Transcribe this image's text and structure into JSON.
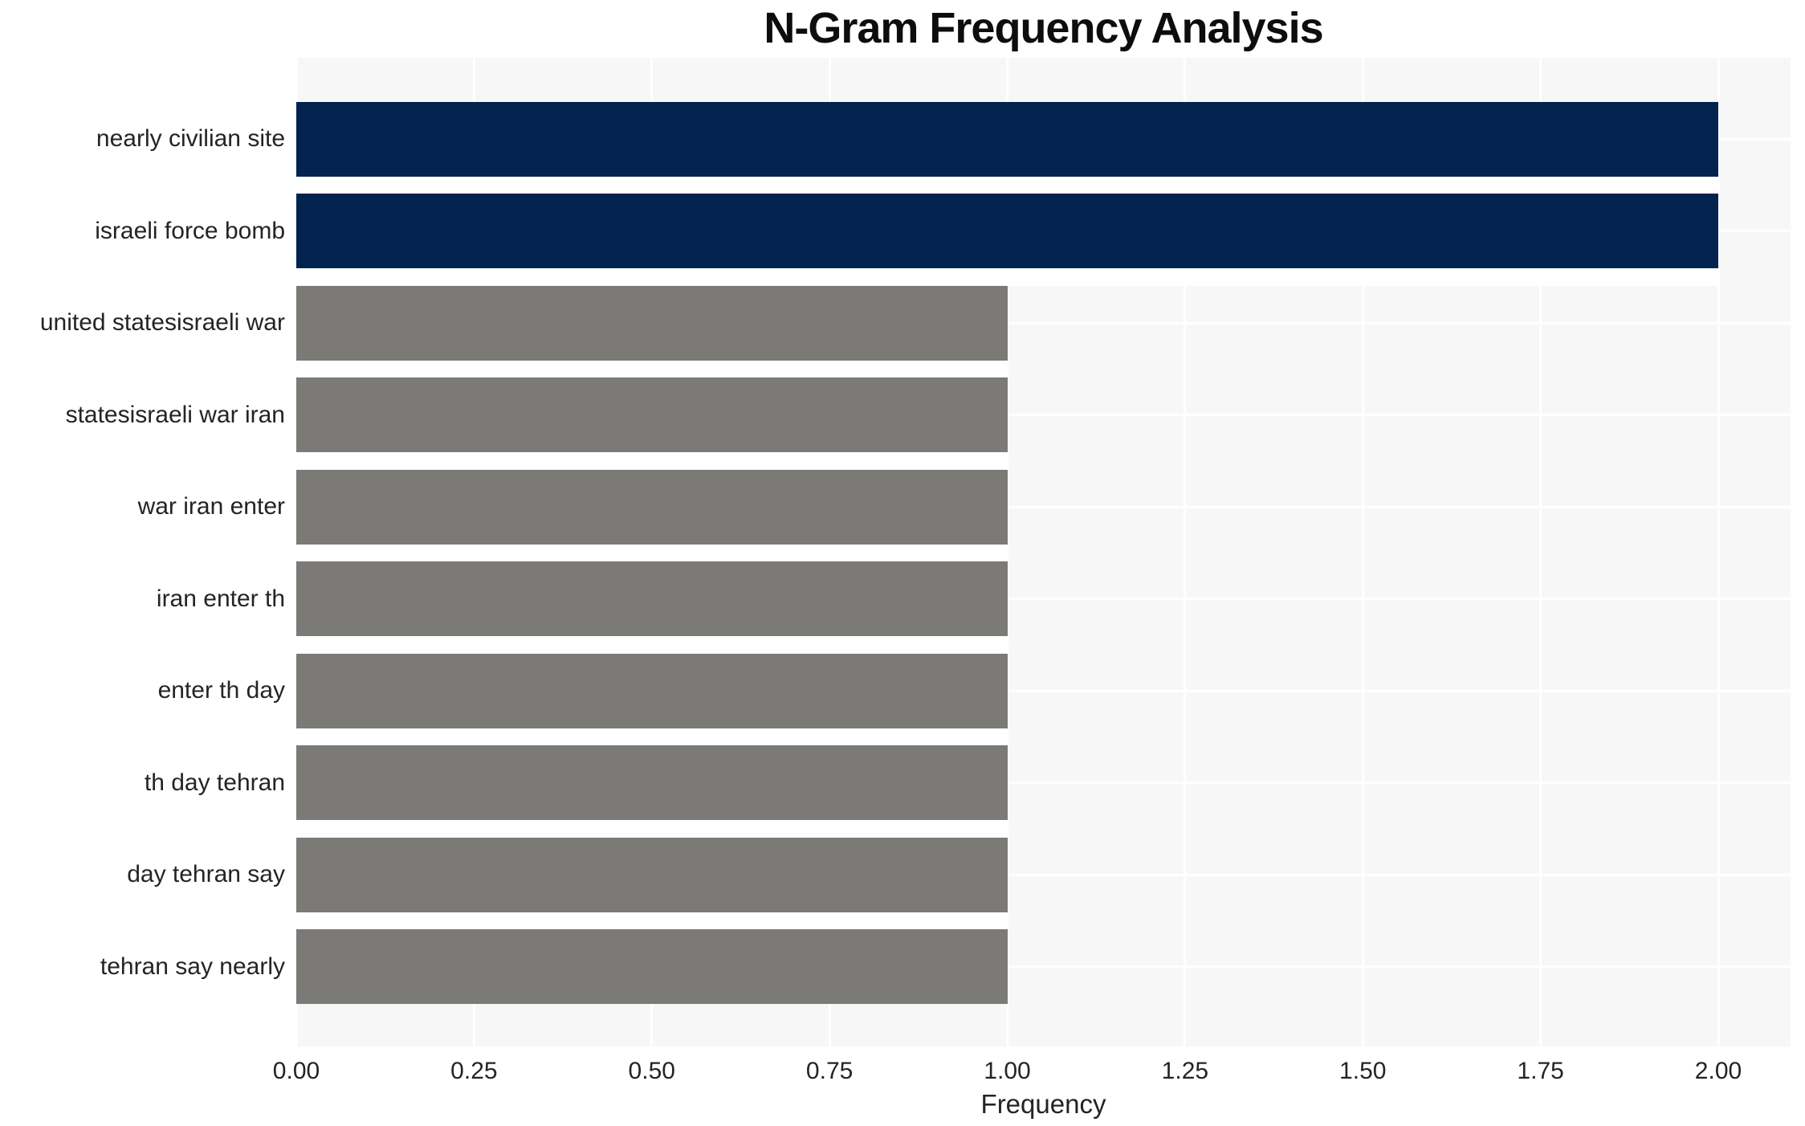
{
  "chart_data": {
    "type": "bar",
    "orientation": "horizontal",
    "title": "N-Gram Frequency Analysis",
    "xlabel": "Frequency",
    "ylabel": "",
    "categories": [
      "nearly civilian site",
      "israeli force bomb",
      "united statesisraeli war",
      "statesisraeli war iran",
      "war iran enter",
      "iran enter th",
      "enter th day",
      "th day tehran",
      "day tehran say",
      "tehran say nearly"
    ],
    "values": [
      2,
      2,
      1,
      1,
      1,
      1,
      1,
      1,
      1,
      1
    ],
    "bar_colors": [
      "#02234e",
      "#02234e",
      "#7b7a77",
      "#7b7a77",
      "#7b7a77",
      "#7b7a77",
      "#7b7a77",
      "#7b7a77",
      "#7b7a77",
      "#7b7a77"
    ],
    "xlim": [
      0,
      2.1
    ],
    "xticks": [
      0,
      0.25,
      0.5,
      0.75,
      1,
      1.25,
      1.5,
      1.75,
      2
    ],
    "xtick_labels": [
      "0.00",
      "0.25",
      "0.50",
      "0.75",
      "1.00",
      "1.25",
      "1.50",
      "1.75",
      "2.00"
    ],
    "grid": true,
    "legend": false,
    "colors": {
      "highlight_bar": "#02234e",
      "default_bar": "#7b7a77",
      "plot_background": "#f7f7f7",
      "gridline": "#ffffff",
      "tick_text": "#242424",
      "title_text": "#0d0d0d"
    }
  }
}
